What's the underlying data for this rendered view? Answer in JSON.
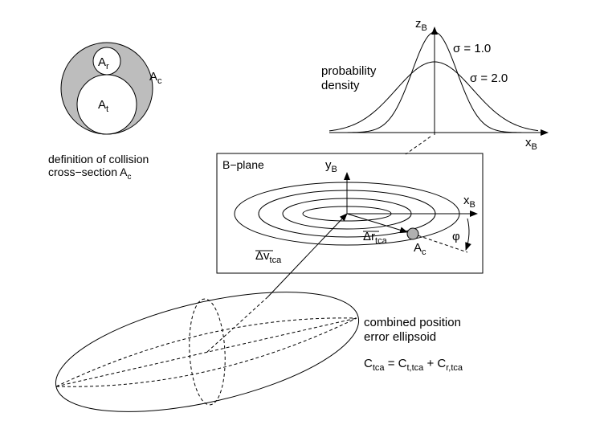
{
  "collision_section": {
    "region_rel": "A",
    "region_rel_sub": "r",
    "region_target": "A",
    "region_target_sub": "t",
    "region_combined": "A",
    "region_combined_sub": "c",
    "caption_line1": "definition of collision",
    "caption_line2": "cross−section A",
    "caption_line2_sub": "c"
  },
  "probability_plot": {
    "ylabel_main": "z",
    "ylabel_sub": "B",
    "xlabel_main": "x",
    "xlabel_sub": "B",
    "title_line1": "probability",
    "title_line2": "density",
    "curve1_label": "σ = 1.0",
    "curve2_label": "σ = 2.0"
  },
  "bplane": {
    "title": "B−plane",
    "y_axis_main": "y",
    "y_axis_sub": "B",
    "x_axis_main": "x",
    "x_axis_sub": "B",
    "delta_r_main": "Δr",
    "delta_r_sub": "tca",
    "object_main": "A",
    "object_sub": "c",
    "angle": "φ"
  },
  "velocity": {
    "label_main": "Δv",
    "label_sub": "tca"
  },
  "ellipsoid": {
    "caption_line1": "combined position",
    "caption_line2": "error ellipsoid",
    "eq_lhs_main": "C",
    "eq_lhs_sub": "tca",
    "eq_equals": " = ",
    "eq_t1_main": "C",
    "eq_t1_sub": "t,tca",
    "eq_plus": " + ",
    "eq_t2_main": "C",
    "eq_t2_sub": "r,tca"
  },
  "colors": {
    "shaded_region": "#bdbdbd",
    "object_fill": "#b0b0b0",
    "ink": "#000000"
  }
}
